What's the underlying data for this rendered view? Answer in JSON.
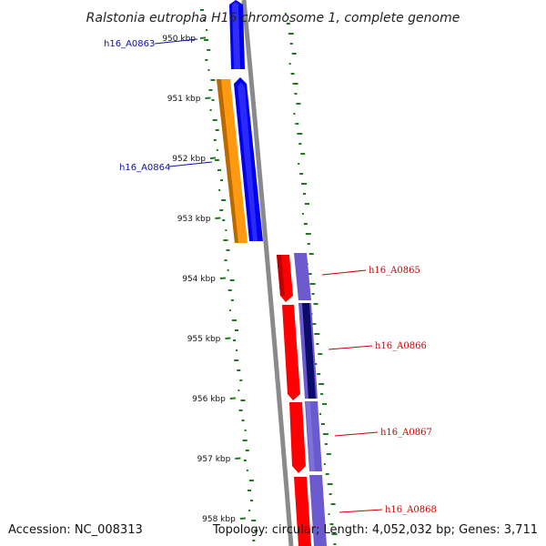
{
  "title": "Ralstonia eutropha H16 chromosome 1, complete genome",
  "footer": {
    "accession": "Accession: NC_008313",
    "stats": "Topology: circular; Length: 4,052,032 bp; Genes: 3,711"
  },
  "colors": {
    "backbone": "#8a8a8a",
    "gc_dots": "#1d7a1d",
    "forward_gene": "#0000ee",
    "forward_gene_alt": "#ff9a10",
    "reverse_gene": "#ff0000",
    "reverse_gene_alt": "#6a5acd",
    "left_label": "#1010aa",
    "right_label": "#cc0000"
  },
  "ticks": [
    {
      "label": "950 kbp"
    },
    {
      "label": "951 kbp"
    },
    {
      "label": "952 kbp"
    },
    {
      "label": "953 kbp"
    },
    {
      "label": "954 kbp"
    },
    {
      "label": "955 kbp"
    },
    {
      "label": "956 kbp"
    },
    {
      "label": "957 kbp"
    },
    {
      "label": "958 kbp"
    }
  ],
  "genes_left": [
    {
      "label": "h16_A0863"
    },
    {
      "label": "h16_A0864"
    }
  ],
  "genes_right": [
    {
      "label": "h16_A0865"
    },
    {
      "label": "h16_A0866"
    },
    {
      "label": "h16_A0867"
    },
    {
      "label": "h16_A0868"
    }
  ]
}
